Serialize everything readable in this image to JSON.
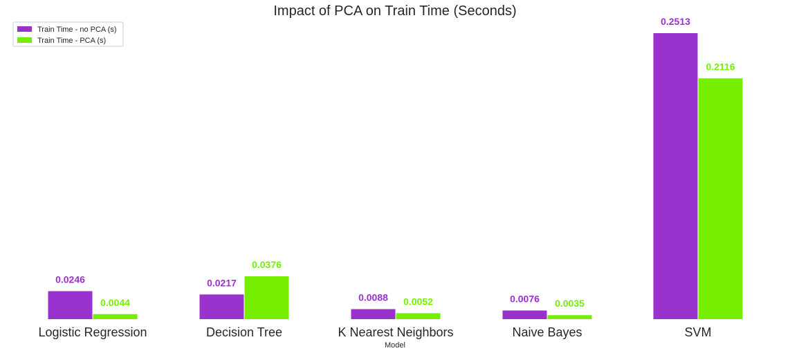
{
  "chart_data": {
    "type": "bar",
    "title": "Impact of PCA on Train Time (Seconds)",
    "xlabel": "Model",
    "ylabel": "",
    "categories": [
      "Logistic Regression",
      "Decision Tree",
      "K Nearest Neighbors",
      "Naive Bayes",
      "SVM"
    ],
    "series": [
      {
        "name": "Train Time - no PCA (s)",
        "color": "#9932cc",
        "values": [
          0.0246,
          0.0217,
          0.0088,
          0.0076,
          0.2513
        ],
        "labels": [
          "0.0246",
          "0.0217",
          "0.0088",
          "0.0076",
          "0.2513"
        ]
      },
      {
        "name": "Train Time - PCA (s)",
        "color": "#76ee00",
        "values": [
          0.0044,
          0.0376,
          0.0052,
          0.0035,
          0.2116
        ],
        "labels": [
          "0.0044",
          "0.0376",
          "0.0052",
          "0.0035",
          "0.2116"
        ]
      }
    ],
    "ylim": [
      0,
      0.2513
    ],
    "grid": false,
    "legend_position": "top-left"
  }
}
